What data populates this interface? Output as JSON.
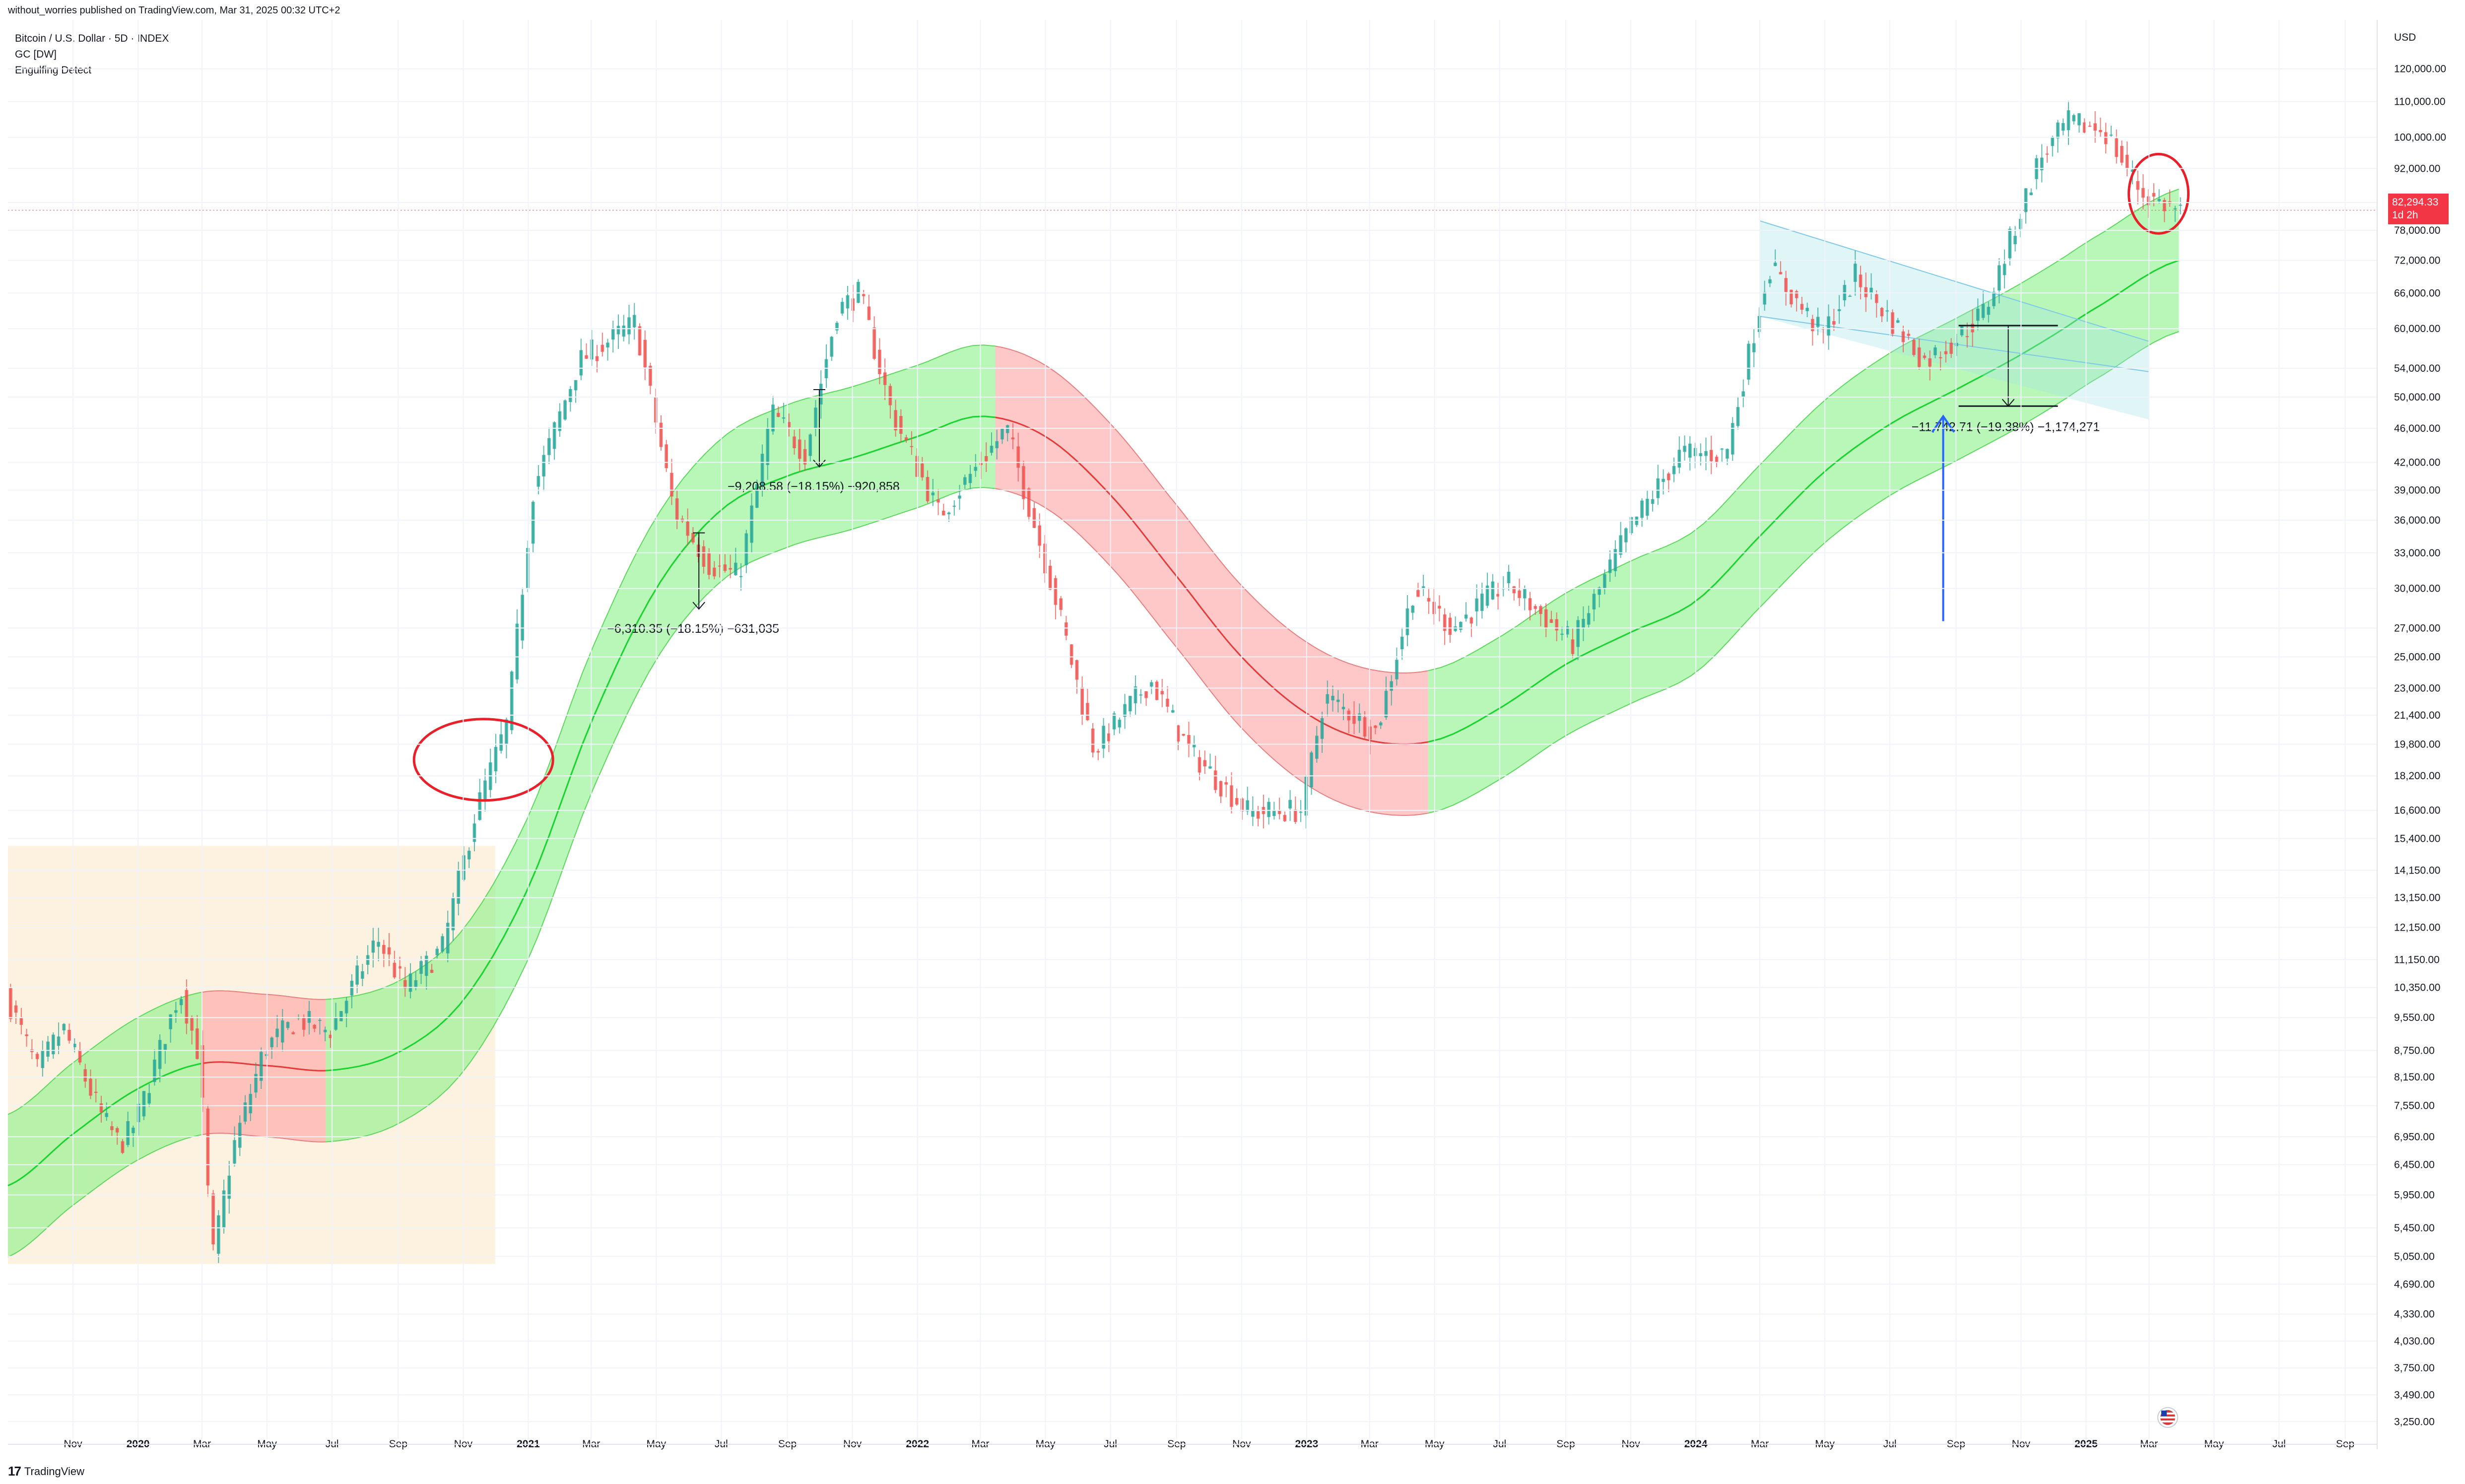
{
  "header": {
    "publisher": "without_worries published on TradingView.com, Mar 31, 2025 00:32 UTC+2",
    "legend": [
      "Bitcoin / U.S. Dollar · 5D · INDEX",
      "GC [DW]",
      "Engulfing Detect"
    ]
  },
  "footer": {
    "brand": "TradingView",
    "logo_text": "17"
  },
  "colors": {
    "up": "#26a69a",
    "down": "#ef5350",
    "engulf_up": "#4cde1c",
    "engulf_down": "#e8202a",
    "band_green": "#7ef07e",
    "band_red": "#ff9a9a",
    "line_green": "#19d32e",
    "line_red": "#e63a3a",
    "range_box": "#fdf0dc",
    "channel": "#a6e1e4",
    "arrow_blue": "#2962ff",
    "circle_red": "#e8202a"
  },
  "chart_data": {
    "type": "candlestick",
    "title": "Bitcoin / U.S. Dollar · 5D · INDEX",
    "y_axis": {
      "unit": "USD",
      "scale": "log",
      "range": [
        3100,
        128000
      ],
      "ticks": [
        "120,000.00",
        "110,000.00",
        "100,000.00",
        "92,000.00",
        "84,000.00",
        "78,000.00",
        "72,000.00",
        "66,000.00",
        "60,000.00",
        "54,000.00",
        "50,000.00",
        "46,000.00",
        "42,000.00",
        "39,000.00",
        "36,000.00",
        "33,000.00",
        "30,000.00",
        "27,000.00",
        "25,000.00",
        "23,000.00",
        "21,400.00",
        "19,800.00",
        "18,200.00",
        "16,600.00",
        "15,400.00",
        "14,150.00",
        "13,150.00",
        "12,150.00",
        "11,150.00",
        "10,350.00",
        "9,550.00",
        "8,750.00",
        "8,150.00",
        "7,550.00",
        "6,950.00",
        "6,450.00",
        "5,950.00",
        "5,450.00",
        "5,050.00",
        "4,690.00",
        "4,330.00",
        "4,030.00",
        "3,750.00",
        "3,490.00",
        "3,250.00"
      ]
    },
    "x_axis": {
      "range": [
        "2019-09-01",
        "2025-10-01"
      ],
      "ticks": [
        {
          "date": "2019-11-01",
          "label": "Nov",
          "year": false
        },
        {
          "date": "2020-01-01",
          "label": "2020",
          "year": true
        },
        {
          "date": "2020-03-01",
          "label": "Mar",
          "year": false
        },
        {
          "date": "2020-05-01",
          "label": "May",
          "year": false
        },
        {
          "date": "2020-07-01",
          "label": "Jul",
          "year": false
        },
        {
          "date": "2020-09-01",
          "label": "Sep",
          "year": false
        },
        {
          "date": "2020-11-01",
          "label": "Nov",
          "year": false
        },
        {
          "date": "2021-01-01",
          "label": "2021",
          "year": true
        },
        {
          "date": "2021-03-01",
          "label": "Mar",
          "year": false
        },
        {
          "date": "2021-05-01",
          "label": "May",
          "year": false
        },
        {
          "date": "2021-07-01",
          "label": "Jul",
          "year": false
        },
        {
          "date": "2021-09-01",
          "label": "Sep",
          "year": false
        },
        {
          "date": "2021-11-01",
          "label": "Nov",
          "year": false
        },
        {
          "date": "2022-01-01",
          "label": "2022",
          "year": true
        },
        {
          "date": "2022-03-01",
          "label": "Mar",
          "year": false
        },
        {
          "date": "2022-05-01",
          "label": "May",
          "year": false
        },
        {
          "date": "2022-07-01",
          "label": "Jul",
          "year": false
        },
        {
          "date": "2022-09-01",
          "label": "Sep",
          "year": false
        },
        {
          "date": "2022-11-01",
          "label": "Nov",
          "year": false
        },
        {
          "date": "2023-01-01",
          "label": "2023",
          "year": true
        },
        {
          "date": "2023-03-01",
          "label": "Mar",
          "year": false
        },
        {
          "date": "2023-05-01",
          "label": "May",
          "year": false
        },
        {
          "date": "2023-07-01",
          "label": "Jul",
          "year": false
        },
        {
          "date": "2023-09-01",
          "label": "Sep",
          "year": false
        },
        {
          "date": "2023-11-01",
          "label": "Nov",
          "year": false
        },
        {
          "date": "2024-01-01",
          "label": "2024",
          "year": true
        },
        {
          "date": "2024-03-01",
          "label": "Mar",
          "year": false
        },
        {
          "date": "2024-05-01",
          "label": "May",
          "year": false
        },
        {
          "date": "2024-07-01",
          "label": "Jul",
          "year": false
        },
        {
          "date": "2024-09-01",
          "label": "Sep",
          "year": false
        },
        {
          "date": "2024-11-01",
          "label": "Nov",
          "year": false
        },
        {
          "date": "2025-01-01",
          "label": "2025",
          "year": true
        },
        {
          "date": "2025-03-01",
          "label": "Mar",
          "year": false
        },
        {
          "date": "2025-05-01",
          "label": "May",
          "year": false
        },
        {
          "date": "2025-07-01",
          "label": "Jul",
          "year": false
        },
        {
          "date": "2025-09-01",
          "label": "Sep",
          "year": false
        }
      ]
    },
    "last_price": {
      "value": "82,294.33",
      "countdown": "1d 2h",
      "price": 82294.33
    },
    "price_path": [
      [
        "2019-09-01",
        10200
      ],
      [
        "2019-10-01",
        8300
      ],
      [
        "2019-10-25",
        9300
      ],
      [
        "2019-12-01",
        7300
      ],
      [
        "2019-12-18",
        6800
      ],
      [
        "2020-01-01",
        7200
      ],
      [
        "2020-02-12",
        10300
      ],
      [
        "2020-03-01",
        8600
      ],
      [
        "2020-03-13",
        5000
      ],
      [
        "2020-04-01",
        6700
      ],
      [
        "2020-05-01",
        8800
      ],
      [
        "2020-06-01",
        9500
      ],
      [
        "2020-07-01",
        9200
      ],
      [
        "2020-08-15",
        11800
      ],
      [
        "2020-09-10",
        10300
      ],
      [
        "2020-10-15",
        11500
      ],
      [
        "2020-11-15",
        16500
      ],
      [
        "2020-12-15",
        21000
      ],
      [
        "2021-01-08",
        39000
      ],
      [
        "2021-02-20",
        55000
      ],
      [
        "2021-04-14",
        61000
      ],
      [
        "2021-05-20",
        37000
      ],
      [
        "2021-06-22",
        32000
      ],
      [
        "2021-07-20",
        31000
      ],
      [
        "2021-08-20",
        48000
      ],
      [
        "2021-09-20",
        43000
      ],
      [
        "2021-10-20",
        63000
      ],
      [
        "2021-11-10",
        66000
      ],
      [
        "2021-12-10",
        48000
      ],
      [
        "2022-01-24",
        36500
      ],
      [
        "2022-03-28",
        46000
      ],
      [
        "2022-05-12",
        29500
      ],
      [
        "2022-06-18",
        19500
      ],
      [
        "2022-08-10",
        23500
      ],
      [
        "2022-09-15",
        19500
      ],
      [
        "2022-11-10",
        16500
      ],
      [
        "2022-12-30",
        16600
      ],
      [
        "2023-01-20",
        22500
      ],
      [
        "2023-03-10",
        20500
      ],
      [
        "2023-04-14",
        30000
      ],
      [
        "2023-05-20",
        27000
      ],
      [
        "2023-07-10",
        30500
      ],
      [
        "2023-09-10",
        25900
      ],
      [
        "2023-11-01",
        35000
      ],
      [
        "2023-12-20",
        43000
      ],
      [
        "2024-02-01",
        43000
      ],
      [
        "2024-03-12",
        71000
      ],
      [
        "2024-05-01",
        59000
      ],
      [
        "2024-06-01",
        69000
      ],
      [
        "2024-08-05",
        55000
      ],
      [
        "2024-09-01",
        58000
      ],
      [
        "2024-10-01",
        63000
      ],
      [
        "2024-11-20",
        94000
      ],
      [
        "2024-12-17",
        104000
      ],
      [
        "2025-01-20",
        102000
      ],
      [
        "2025-02-25",
        86000
      ],
      [
        "2025-03-29",
        82300
      ]
    ],
    "band_center": [
      [
        "2019-09-01",
        6100
      ],
      [
        "2019-11-01",
        7000
      ],
      [
        "2020-01-01",
        7900
      ],
      [
        "2020-03-01",
        8450
      ],
      [
        "2020-05-01",
        8400
      ],
      [
        "2020-07-01",
        8300
      ],
      [
        "2020-09-01",
        8700
      ],
      [
        "2020-11-01",
        10000
      ],
      [
        "2021-01-01",
        13500
      ],
      [
        "2021-03-01",
        21000
      ],
      [
        "2021-05-01",
        30000
      ],
      [
        "2021-07-01",
        37000
      ],
      [
        "2021-09-01",
        40500
      ],
      [
        "2021-11-01",
        42500
      ],
      [
        "2022-01-01",
        45000
      ],
      [
        "2022-03-01",
        47500
      ],
      [
        "2022-05-01",
        45000
      ],
      [
        "2022-07-01",
        38500
      ],
      [
        "2022-09-01",
        31000
      ],
      [
        "2022-11-01",
        25000
      ],
      [
        "2023-01-01",
        21500
      ],
      [
        "2023-03-01",
        20000
      ],
      [
        "2023-05-01",
        20000
      ],
      [
        "2023-07-01",
        21800
      ],
      [
        "2023-09-01",
        24500
      ],
      [
        "2023-11-01",
        26700
      ],
      [
        "2024-01-01",
        29000
      ],
      [
        "2024-03-01",
        34500
      ],
      [
        "2024-05-01",
        41000
      ],
      [
        "2024-07-01",
        46500
      ],
      [
        "2024-09-01",
        51000
      ],
      [
        "2024-11-01",
        56000
      ],
      [
        "2025-01-01",
        62500
      ],
      [
        "2025-03-29",
        72000
      ]
    ],
    "band_width_log": 0.19,
    "red_segments": [
      [
        "2020-03-01",
        "2020-06-25"
      ],
      [
        "2022-03-15",
        "2023-04-25"
      ]
    ],
    "ranges": [
      {
        "from": "2019-09-01",
        "to": "2020-12-01",
        "low": 4950,
        "high": 15100
      }
    ],
    "channel": {
      "upper": [
        [
          "2024-03-01",
          80000
        ],
        [
          "2025-03-01",
          58000
        ]
      ],
      "lower": [
        [
          "2024-03-01",
          62000
        ],
        [
          "2025-03-01",
          53500
        ]
      ]
    },
    "measurements": [
      {
        "date": "2021-06-10",
        "from": 34800,
        "to": 28400,
        "label": "−6,310.35 (−18.15%) −631,035"
      },
      {
        "date": "2021-10-01",
        "from": 51000,
        "to": 41500,
        "label": "−9,208.58 (−18.15%) −920,858"
      },
      {
        "date": "2024-10-20",
        "from": 60500,
        "to": 48800,
        "label": "−11,742.71 (−19.38%) −1,174,271"
      }
    ],
    "blue_arrow": {
      "date": "2024-08-20",
      "from": 27500,
      "to": 47500
    },
    "circles": [
      {
        "date": "2020-11-20",
        "value": 19000
      },
      {
        "date": "2025-03-10",
        "value": 86000
      }
    ]
  }
}
